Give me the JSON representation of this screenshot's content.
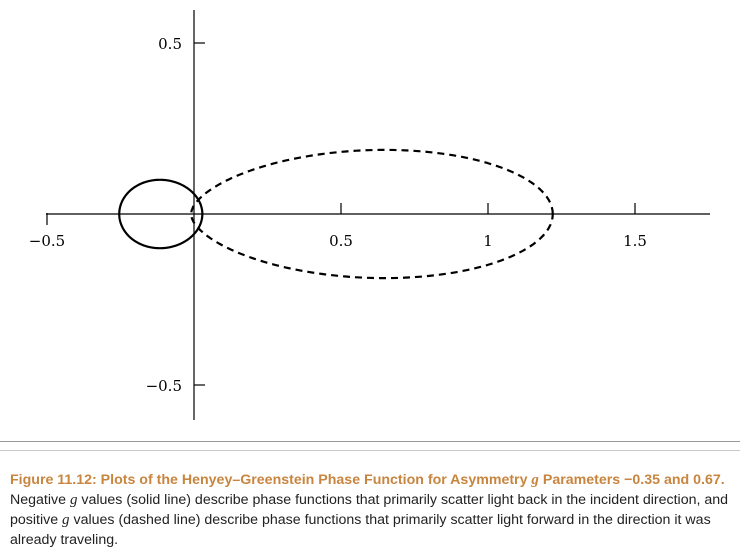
{
  "chart_data": {
    "type": "line",
    "title": "",
    "xlabel": "",
    "ylabel": "",
    "xlim": [
      -0.55,
      1.7
    ],
    "ylim": [
      -0.65,
      0.55
    ],
    "x_ticks": [
      {
        "value": -0.5,
        "label": "−0.5"
      },
      {
        "value": 0.5,
        "label": "0.5"
      },
      {
        "value": 1,
        "label": "1"
      },
      {
        "value": 1.5,
        "label": "1.5"
      }
    ],
    "y_ticks": [
      {
        "value": 0.5,
        "label": "0.5"
      },
      {
        "value": -0.5,
        "label": "−0.5"
      }
    ],
    "grid": false,
    "series": [
      {
        "g": -0.35,
        "style": "solid",
        "plot": "polar",
        "curve": "Henyey-Greenstein phase function"
      },
      {
        "g": 0.67,
        "style": "dashed",
        "plot": "polar",
        "curve": "Henyey-Greenstein phase function"
      }
    ]
  },
  "caption": {
    "head_a": "Figure 11.12: Plots of the Henyey–Greenstein Phase Function for Asymmetry ",
    "g": "g",
    "head_b": " Parameters −0.35 and 0.67.",
    "body_a": " Negative ",
    "body_b": " values (solid line) describe phase functions that primarily scatter light back in the incident direction, and positive ",
    "body_c": " values (dashed line) describe phase functions that primarily scatter light forward in the direction it was already traveling."
  }
}
